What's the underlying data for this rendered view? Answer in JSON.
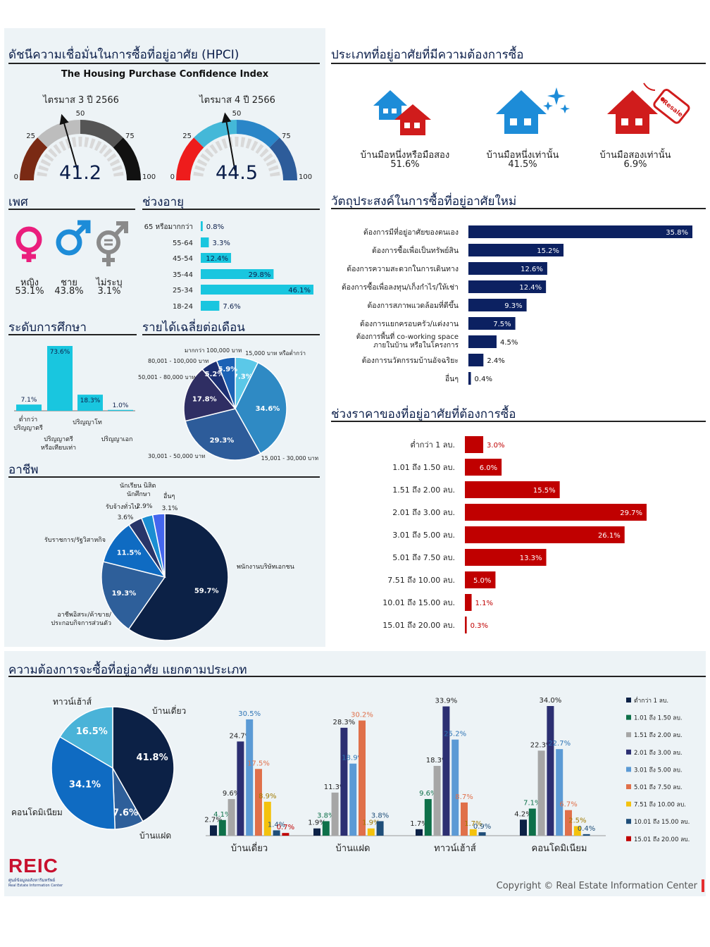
{
  "hpci": {
    "title": "ดัชนีความเชื่อมั่นในการซื้อที่อยู่อาศัย (HPCI)",
    "subtitle": "The Housing Purchase Confidence Index",
    "gauges": [
      {
        "label": "ไตรมาส 3 ปี 2566",
        "value": 41.2,
        "value_text": "41.2",
        "ticks": [
          "0",
          "25",
          "50",
          "75",
          "100"
        ],
        "colors": [
          "#7a2a14",
          "#bdbdbd",
          "#555555",
          "#111111"
        ]
      },
      {
        "label": "ไตรมาส 4 ปี 2566",
        "value": 44.5,
        "value_text": "44.5",
        "ticks": [
          "0",
          "25",
          "50",
          "75",
          "100"
        ],
        "colors": [
          "#ee1c1c",
          "#44b8d8",
          "#2a86c8",
          "#2d5c9a"
        ]
      }
    ]
  },
  "gender": {
    "title": "เพศ",
    "items": [
      {
        "label": "หญิง",
        "value": "53.1%",
        "color": "#ea1e7d",
        "icon": "female-icon"
      },
      {
        "label": "ชาย",
        "value": "43.8%",
        "color": "#1d8cd8",
        "icon": "male-icon"
      },
      {
        "label": "ไม่ระบุ",
        "value": "3.1%",
        "color": "#8a8a8a",
        "icon": "genderless-icon"
      }
    ]
  },
  "age": {
    "title": "ช่วงอายุ",
    "categories": [
      "65 หรือมากกว่า",
      "55-64",
      "45-54",
      "35-44",
      "25-34",
      "18-24"
    ],
    "values": [
      0.8,
      3.3,
      12.4,
      29.8,
      46.1,
      7.6
    ],
    "labels": [
      "0.8%",
      "3.3%",
      "12.4%",
      "29.8%",
      "46.1%",
      "7.6%"
    ],
    "color": "#19c6df"
  },
  "education": {
    "title": "ระดับการศึกษา",
    "categories": [
      "ต่ำกว่า ปริญญาตรี",
      "ปริญญาตรี หรือเทียบเท่า",
      "ปริญญาโท",
      "ปริญญาเอก"
    ],
    "values": [
      7.1,
      73.6,
      18.3,
      1.0
    ],
    "labels": [
      "7.1%",
      "73.6%",
      "18.3%",
      "1.0%"
    ],
    "color": "#19c6df"
  },
  "income": {
    "title": "รายได้เฉลี่ยต่อเดือน",
    "labels": [
      "15,000 บาท หรือต่ำกว่า",
      "15,001 - 30,000 บาท",
      "30,001 - 50,000 บาท",
      "50,001 - 80,000 บาท",
      "80,001 - 100,000 บาท",
      "มากกว่า 100,000 บาท"
    ],
    "values": [
      7.3,
      34.6,
      29.3,
      17.8,
      5.2,
      5.9
    ],
    "value_labels": [
      "7.3%",
      "34.6%",
      "29.3%",
      "17.8%",
      "5.2%",
      "5.9%"
    ],
    "colors": [
      "#5bc8e8",
      "#2f8ac4",
      "#2d5c9a",
      "#2f2e63",
      "#1c2f72",
      "#1b62b5"
    ]
  },
  "occupation": {
    "title": "อาชีพ",
    "labels": [
      "พนักงานบริษัทเอกชน",
      "อาชีพอิสระ/ค้าขาย/ ประกอบกิจการส่วนตัว",
      "รับราชการ/รัฐวิสาหกิจ",
      "รับจ้างทั่วไป",
      "นักเรียน นิสิต นักศึกษา",
      "อื่นๆ"
    ],
    "values": [
      59.7,
      19.3,
      11.5,
      3.6,
      2.9,
      3.1
    ],
    "value_labels": [
      "59.7%",
      "19.3%",
      "11.5%",
      "3.6%",
      "2.9%",
      "3.1%"
    ],
    "colors": [
      "#0c2146",
      "#2e5f9a",
      "#0f6bc2",
      "#283569",
      "#1b8ed2",
      "#4466ee"
    ]
  },
  "types": {
    "title": "ประเภทที่อยู่อาศัยที่มีความต้องการซื้อ",
    "items": [
      {
        "label": "บ้านมือหนึ่งหรือมือสอง",
        "value": "51.6%",
        "icon": "new-and-resale-house-icon"
      },
      {
        "label": "บ้านมือหนึ่งเท่านั้น",
        "value": "41.5%",
        "icon": "new-house-icon"
      },
      {
        "label": "บ้านมือสองเท่านั้น",
        "value": "6.9%",
        "icon": "resale-house-icon",
        "tag": "Resale"
      }
    ]
  },
  "purpose": {
    "title": "วัตถุประสงค์ในการซื้อที่อยู่อาศัยใหม่",
    "categories": [
      "ต้องการมีที่อยู่อาศัยของตนเอง",
      "ต้องการซื้อเพื่อเป็นทรัพย์สิน",
      "ต้องการความสะดวกในการเดินทาง",
      "ต้องการซื้อเพื่อลงทุน/เก็งกำไร/ให้เช่า",
      "ต้องการสภาพแวดล้อมที่ดีขึ้น",
      "ต้องการแยกครอบครัว/แต่งงาน",
      "ต้องการพื้นที่ co-working space ภายในบ้าน หรือในโครงการ",
      "ต้องการนวัตกรรมบ้านอัจฉริยะ",
      "อื่นๆ"
    ],
    "values": [
      35.8,
      15.2,
      12.6,
      12.4,
      9.3,
      7.5,
      4.5,
      2.4,
      0.4
    ],
    "labels": [
      "35.8%",
      "15.2%",
      "12.6%",
      "12.4%",
      "9.3%",
      "7.5%",
      "4.5%",
      "2.4%",
      "0.4%"
    ],
    "color": "#0c2161"
  },
  "price": {
    "title": "ช่วงราคาของที่อยู่อาศัยที่ต้องการซื้อ",
    "categories": [
      "ต่ำกว่า 1 ลบ.",
      "1.01 ถึง 1.50 ลบ.",
      "1.51 ถึง 2.00 ลบ.",
      "2.01 ถึง 3.00 ลบ.",
      "3.01 ถึง 5.00 ลบ.",
      "5.01 ถึง 7.50 ลบ.",
      "7.51 ถึง 10.00 ลบ.",
      "10.01 ถึง 15.00 ลบ.",
      "15.01 ถึง 20.00 ลบ."
    ],
    "values": [
      3.0,
      6.0,
      15.5,
      29.7,
      26.1,
      13.3,
      5.0,
      1.1,
      0.3
    ],
    "labels": [
      "3.0%",
      "6.0%",
      "15.5%",
      "29.7%",
      "26.1%",
      "13.3%",
      "5.0%",
      "1.1%",
      "0.3%"
    ],
    "color": "#c00000"
  },
  "demand": {
    "title": "ความต้องการจะซื้อที่อยู่อาศัย แยกตามประเภท",
    "pie": {
      "labels": [
        "บ้านเดี่ยว",
        "บ้านแฝด",
        "คอนโดมิเนียม",
        "ทาวน์เฮ้าส์"
      ],
      "values": [
        41.8,
        7.6,
        34.1,
        16.5
      ],
      "value_labels": [
        "41.8%",
        "7.6%",
        "34.1%",
        "16.5%"
      ],
      "colors": [
        "#0c2146",
        "#2e5f9a",
        "#0f6bc2",
        "#4ab3d8"
      ]
    },
    "chart_data": {
      "type": "bar",
      "categories": [
        "บ้านเดี่ยว",
        "บ้านแฝด",
        "ทาวน์เฮ้าส์",
        "คอนโดมิเนียม"
      ],
      "series": [
        {
          "name": "ต่ำกว่า 1 ลบ.",
          "color": "#0c2146",
          "values": [
            2.7,
            1.9,
            1.7,
            4.2
          ],
          "labels": [
            "2.7%",
            "1.9%",
            "1.7%",
            "4.2%"
          ]
        },
        {
          "name": "1.01 ถึง 1.50 ลบ.",
          "color": "#0e7049",
          "values": [
            4.1,
            3.8,
            9.6,
            7.1
          ],
          "labels": [
            "4.1%",
            "3.8%",
            "9.6%",
            "7.1%"
          ]
        },
        {
          "name": "1.51 ถึง 2.00 ลบ.",
          "color": "#a6a6a6",
          "values": [
            9.6,
            11.3,
            18.3,
            22.3
          ],
          "labels": [
            "9.6%",
            "11.3%",
            "18.3%",
            "22.3%"
          ]
        },
        {
          "name": "2.01 ถึง 3.00 ลบ.",
          "color": "#2c2f72",
          "values": [
            24.7,
            28.3,
            33.9,
            34.0
          ],
          "labels": [
            "24.7%",
            "28.3%",
            "33.9%",
            "34.0%"
          ]
        },
        {
          "name": "3.01 ถึง 5.00 ลบ.",
          "color": "#5b9ad5",
          "values": [
            30.5,
            18.9,
            25.2,
            22.7
          ],
          "labels": [
            "30.5%",
            "18.9%",
            "25.2%",
            "22.7%"
          ]
        },
        {
          "name": "5.01 ถึง 7.50 ลบ.",
          "color": "#e0704a",
          "values": [
            17.5,
            30.2,
            8.7,
            6.7
          ],
          "labels": [
            "17.5%",
            "30.2%",
            "8.7%",
            "6.7%"
          ]
        },
        {
          "name": "7.51 ถึง 10.00 ลบ.",
          "color": "#f4c20d",
          "values": [
            8.9,
            1.9,
            1.7,
            2.5
          ],
          "labels": [
            "8.9%",
            "1.9%",
            "1.7%",
            "2.5%"
          ]
        },
        {
          "name": "10.01 ถึง 15.00 ลบ.",
          "color": "#1f4e79",
          "values": [
            1.4,
            3.8,
            0.9,
            0.4
          ],
          "labels": [
            "1.4%",
            "3.8%",
            "0.9%",
            "0.4%"
          ]
        },
        {
          "name": "15.01 ถึง 20.00 ลบ.",
          "color": "#c00000",
          "values": [
            0.7,
            0,
            0,
            0
          ],
          "labels": [
            "0.7%",
            "",
            "",
            ""
          ]
        }
      ]
    }
  },
  "footer": {
    "logo": "REIC",
    "logo_sub1": "ศูนย์ข้อมูลอสังหาริมทรัพย์",
    "logo_sub2": "Real Estate Information Center",
    "copyright": "Copyright © Real Estate Information Center"
  }
}
